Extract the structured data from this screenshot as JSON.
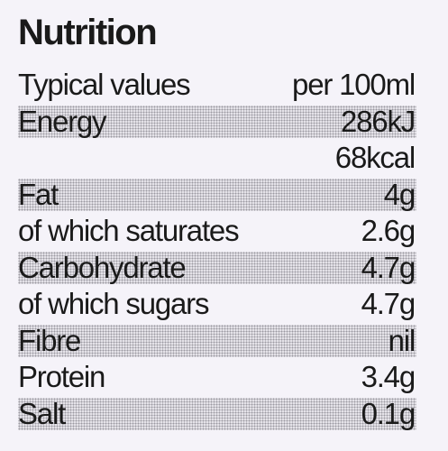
{
  "title": "Nutrition",
  "header": {
    "label": "Typical values",
    "value": "per 100ml"
  },
  "rows": [
    {
      "label": "Energy",
      "values": [
        "286kJ",
        "68kcal"
      ]
    },
    {
      "label": "Fat",
      "values": [
        "4g"
      ]
    },
    {
      "label": "of which saturates",
      "values": [
        "2.6g"
      ]
    },
    {
      "label": "Carbohydrate",
      "values": [
        "4.7g"
      ]
    },
    {
      "label": "of which sugars",
      "values": [
        "4.7g"
      ]
    },
    {
      "label": "Fibre",
      "values": [
        "nil"
      ]
    },
    {
      "label": "Protein",
      "values": [
        "3.4g"
      ]
    },
    {
      "label": "Salt",
      "values": [
        "0.1g"
      ]
    }
  ]
}
